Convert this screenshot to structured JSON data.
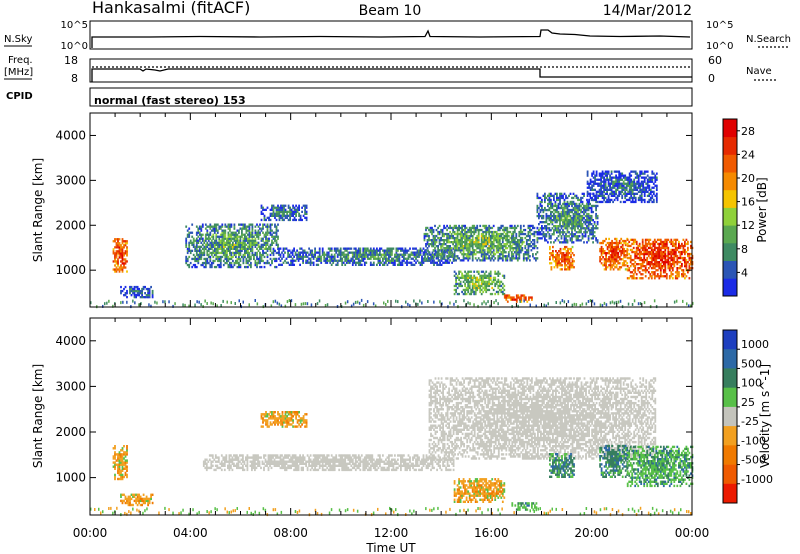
{
  "header": {
    "station": "Hankasalmi (fitACF)",
    "beam": "Beam 10",
    "date": "14/Mar/2012"
  },
  "strips": {
    "nsky_label": "N.Sky",
    "nsky_ticks": [
      "10^5",
      "10^0"
    ],
    "nsearch_label": "N.Search",
    "nsearch_ticks": [
      "10^5",
      "10^0"
    ],
    "freq_label_1": "Freq.",
    "freq_label_2": "[MHz]",
    "freq_ticks": [
      "18",
      "8"
    ],
    "nave_label": "Nave",
    "nave_ticks": [
      "60",
      "0"
    ],
    "cpid_label": "CPID",
    "cpid_text": "normal (fast stereo) 153"
  },
  "colors": {
    "power": [
      "#1b2be6",
      "#2b55b5",
      "#3e8a62",
      "#5aa850",
      "#8fd13a",
      "#f5c400",
      "#f58a00",
      "#f05a00",
      "#e62a00",
      "#e00000"
    ],
    "velocity": [
      "#1e3fbf",
      "#2d69a6",
      "#377e5e",
      "#58c048",
      "#c4c4bc",
      "#f2a020",
      "#f07a00",
      "#ef5a00",
      "#ec1a00"
    ],
    "ground_scatter": "#c8c8c0"
  },
  "chart_data": [
    {
      "type": "heatmap",
      "title": "Power",
      "ylabel": "Slant Range [km]",
      "xlabel": "Time UT",
      "x_ticks": [
        "00:00",
        "04:00",
        "08:00",
        "12:00",
        "16:00",
        "20:00",
        "00:00"
      ],
      "xlim": [
        0,
        24
      ],
      "y_ticks": [
        "1000",
        "2000",
        "3000",
        "4000"
      ],
      "ylim": [
        180,
        4500
      ],
      "colorbar": {
        "label": "Power [dB]",
        "ticks": [
          "4",
          "8",
          "12",
          "16",
          "20",
          "24",
          "28"
        ],
        "range": [
          0,
          30
        ]
      },
      "echo_regions": [
        {
          "t0": 0.9,
          "t1": 1.5,
          "r0": 950,
          "r1": 1700,
          "level": 26
        },
        {
          "t0": 1.2,
          "t1": 2.5,
          "r0": 380,
          "r1": 620,
          "level": 8
        },
        {
          "t0": 3.8,
          "t1": 7.5,
          "r0": 1050,
          "r1": 2000,
          "level": 11
        },
        {
          "t0": 6.8,
          "t1": 8.6,
          "r0": 2100,
          "r1": 2450,
          "level": 8
        },
        {
          "t0": 7.5,
          "t1": 14.5,
          "r0": 1100,
          "r1": 1500,
          "level": 9
        },
        {
          "t0": 13.3,
          "t1": 17.8,
          "r0": 1200,
          "r1": 2000,
          "level": 12
        },
        {
          "t0": 14.5,
          "t1": 16.5,
          "r0": 450,
          "r1": 950,
          "level": 14
        },
        {
          "t0": 16.5,
          "t1": 17.6,
          "r0": 280,
          "r1": 460,
          "level": 26
        },
        {
          "t0": 17.8,
          "t1": 20.2,
          "r0": 1600,
          "r1": 2700,
          "level": 10
        },
        {
          "t0": 18.3,
          "t1": 19.3,
          "r0": 1000,
          "r1": 1500,
          "level": 25
        },
        {
          "t0": 19.8,
          "t1": 22.6,
          "r0": 2500,
          "r1": 3200,
          "level": 7
        },
        {
          "t0": 20.3,
          "t1": 21.4,
          "r0": 1000,
          "r1": 1700,
          "level": 26
        },
        {
          "t0": 21.4,
          "t1": 24.0,
          "r0": 800,
          "r1": 1700,
          "level": 27
        }
      ]
    },
    {
      "type": "heatmap",
      "title": "Velocity",
      "ylabel": "Slant Range [km]",
      "xlabel": "Time UT",
      "x_ticks": [
        "00:00",
        "04:00",
        "08:00",
        "12:00",
        "16:00",
        "20:00",
        "00:00"
      ],
      "xlim": [
        0,
        24
      ],
      "y_ticks": [
        "1000",
        "2000",
        "3000",
        "4000"
      ],
      "ylim": [
        180,
        4500
      ],
      "colorbar": {
        "label": "Velocity [m s^-1]",
        "ticks": [
          "1000",
          "500",
          "100",
          "25",
          "-25",
          "-100",
          "-500",
          "-1000"
        ]
      },
      "echo_regions": [
        {
          "t0": 0.9,
          "t1": 1.5,
          "r0": 950,
          "r1": 1700,
          "kind": "away"
        },
        {
          "t0": 1.2,
          "t1": 2.5,
          "r0": 380,
          "r1": 620,
          "kind": "away"
        },
        {
          "t0": 4.5,
          "t1": 14.5,
          "r0": 1150,
          "r1": 1500,
          "kind": "ground"
        },
        {
          "t0": 6.8,
          "t1": 8.6,
          "r0": 2100,
          "r1": 2450,
          "kind": "away"
        },
        {
          "t0": 13.5,
          "t1": 22.5,
          "r0": 1400,
          "r1": 3200,
          "kind": "ground"
        },
        {
          "t0": 14.5,
          "t1": 16.5,
          "r0": 450,
          "r1": 950,
          "kind": "away"
        },
        {
          "t0": 16.8,
          "t1": 17.8,
          "r0": 280,
          "r1": 460,
          "kind": "slow_toward"
        },
        {
          "t0": 18.3,
          "t1": 19.3,
          "r0": 1000,
          "r1": 1500,
          "kind": "toward"
        },
        {
          "t0": 20.3,
          "t1": 21.4,
          "r0": 1000,
          "r1": 1700,
          "kind": "toward"
        },
        {
          "t0": 21.4,
          "t1": 24.0,
          "r0": 800,
          "r1": 1700,
          "kind": "slow_toward"
        }
      ]
    }
  ]
}
